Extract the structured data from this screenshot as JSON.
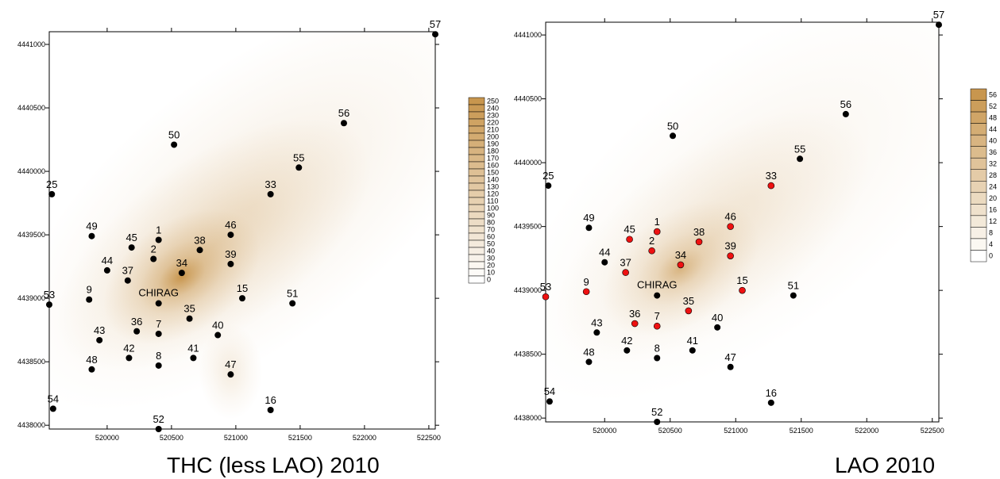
{
  "maps": [
    {
      "caption": "THC (less LAO) 2010",
      "x_ticks": [
        "520000",
        "520500",
        "521000",
        "521500",
        "522000",
        "522500"
      ],
      "y_ticks": [
        "4441000",
        "4440500",
        "4440000",
        "4439500",
        "4439000",
        "4438500",
        "4438000"
      ],
      "xlim": [
        519550,
        522550
      ],
      "ylim": [
        4437970,
        4441100
      ],
      "plume": {
        "peak": [
          520580,
          4439170
        ],
        "level_max": 255
      },
      "legend": {
        "levels": [
          "250",
          "240",
          "230",
          "220",
          "210",
          "200",
          "190",
          "180",
          "170",
          "160",
          "150",
          "140",
          "130",
          "120",
          "110",
          "100",
          "90",
          "80",
          "70",
          "60",
          "50",
          "40",
          "30",
          "20",
          "10",
          "0"
        ]
      }
    },
    {
      "caption": "LAO 2010",
      "x_ticks": [
        "520000",
        "520500",
        "521000",
        "521500",
        "522000",
        "522500"
      ],
      "y_ticks": [
        "4441000",
        "4440500",
        "4440000",
        "4439500",
        "4439000",
        "4438500",
        "4438000"
      ],
      "xlim": [
        519550,
        522550
      ],
      "ylim": [
        4437970,
        4441100
      ],
      "plume": {
        "peak": [
          520580,
          4439170
        ],
        "level_max": 56
      },
      "legend": {
        "levels": [
          "56",
          "52",
          "48",
          "44",
          "40",
          "36",
          "32",
          "28",
          "24",
          "20",
          "16",
          "12",
          "8",
          "4",
          "0"
        ]
      }
    }
  ],
  "stations": [
    {
      "id": "57",
      "x": 522550,
      "y": 4441080
    },
    {
      "id": "56",
      "x": 521840,
      "y": 4440380
    },
    {
      "id": "50",
      "x": 520520,
      "y": 4440210
    },
    {
      "id": "55",
      "x": 521490,
      "y": 4440030
    },
    {
      "id": "25",
      "x": 519570,
      "y": 4439820
    },
    {
      "id": "33",
      "x": 521270,
      "y": 4439820
    },
    {
      "id": "49",
      "x": 519880,
      "y": 4439490
    },
    {
      "id": "46",
      "x": 520960,
      "y": 4439500
    },
    {
      "id": "1",
      "x": 520400,
      "y": 4439460
    },
    {
      "id": "45",
      "x": 520190,
      "y": 4439400
    },
    {
      "id": "38",
      "x": 520720,
      "y": 4439380
    },
    {
      "id": "2",
      "x": 520360,
      "y": 4439310
    },
    {
      "id": "39",
      "x": 520960,
      "y": 4439270
    },
    {
      "id": "44",
      "x": 520000,
      "y": 4439220
    },
    {
      "id": "34",
      "x": 520580,
      "y": 4439200
    },
    {
      "id": "37",
      "x": 520160,
      "y": 4439140
    },
    {
      "id": "15",
      "x": 521050,
      "y": 4439000
    },
    {
      "id": "51",
      "x": 521440,
      "y": 4438960
    },
    {
      "id": "9",
      "x": 519860,
      "y": 4438990
    },
    {
      "id": "53",
      "x": 519550,
      "y": 4438950
    },
    {
      "id": "CHIRAG",
      "x": 520400,
      "y": 4438960
    },
    {
      "id": "35",
      "x": 520640,
      "y": 4438840
    },
    {
      "id": "36",
      "x": 520230,
      "y": 4438740
    },
    {
      "id": "7",
      "x": 520400,
      "y": 4438720
    },
    {
      "id": "40",
      "x": 520860,
      "y": 4438710
    },
    {
      "id": "43",
      "x": 519940,
      "y": 4438670
    },
    {
      "id": "42",
      "x": 520170,
      "y": 4438530
    },
    {
      "id": "41",
      "x": 520670,
      "y": 4438530
    },
    {
      "id": "8",
      "x": 520400,
      "y": 4438470
    },
    {
      "id": "48",
      "x": 519880,
      "y": 4438440
    },
    {
      "id": "47",
      "x": 520960,
      "y": 4438400
    },
    {
      "id": "54",
      "x": 519580,
      "y": 4438130
    },
    {
      "id": "16",
      "x": 521270,
      "y": 4438120
    },
    {
      "id": "52",
      "x": 520400,
      "y": 4437970
    }
  ],
  "lao_highlighted": [
    "45",
    "1",
    "2",
    "38",
    "46",
    "39",
    "37",
    "34",
    "33",
    "53",
    "9",
    "15",
    "36",
    "7",
    "35"
  ],
  "colors": {
    "plume": "#c8964e",
    "station": "#000000",
    "station_highlight": "#ee1111",
    "axis": "#000000"
  }
}
